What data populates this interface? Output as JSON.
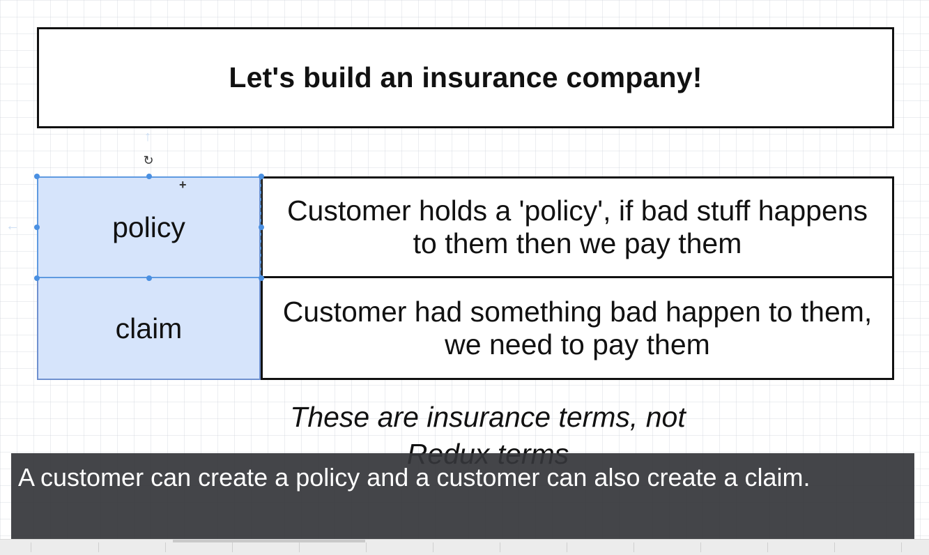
{
  "diagram": {
    "title": "Let's build an insurance company!",
    "rows": [
      {
        "term": "policy",
        "description": "Customer holds a 'policy', if bad stuff happens to them then we pay them"
      },
      {
        "term": "claim",
        "description": "Customer had something bad happen to them, we need to pay them"
      }
    ],
    "note": "These are insurance terms, not Redux terms"
  },
  "caption": {
    "text": "A customer can create a policy and a customer can also create a claim."
  },
  "icons": {
    "rotate": "rotate-icon",
    "move": "move-icon",
    "connector_up": "arrow-up-icon",
    "connector_left": "arrow-left-icon"
  },
  "colors": {
    "term_fill": "#d6e4fb",
    "selection": "#4a90e2",
    "caption_bg": "#343539"
  }
}
